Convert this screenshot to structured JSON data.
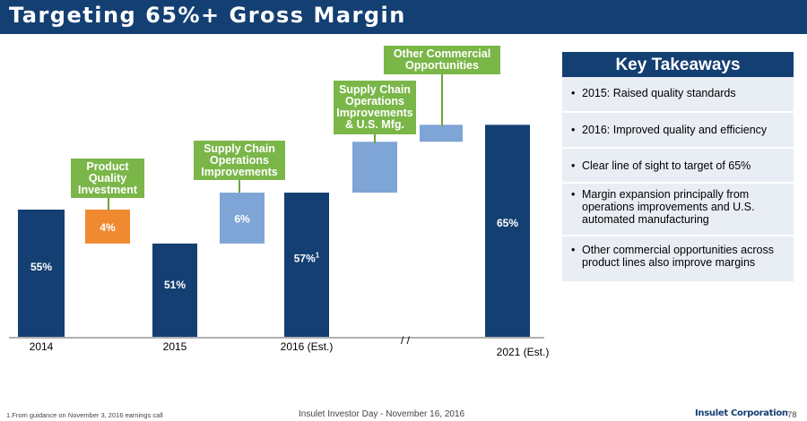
{
  "title": "Targeting 65%+ Gross Margin",
  "chart_data": {
    "type": "bar",
    "subtype": "waterfall",
    "categories": [
      "2014",
      "2015",
      "2016 (Est.)",
      "2021 (Est.)"
    ],
    "bars": [
      {
        "label": "55%",
        "kind": "total",
        "from": 0,
        "to": 55,
        "color": "#143f72"
      },
      {
        "label": "4%",
        "kind": "decrease",
        "from": 51,
        "to": 55,
        "color": "#f08a30",
        "callout": "Product Quality Investment"
      },
      {
        "label": "51%",
        "kind": "total",
        "from": 0,
        "to": 51,
        "category": "2015",
        "color": "#143f72"
      },
      {
        "label": "6%",
        "kind": "increase",
        "from": 51,
        "to": 57,
        "color": "#7fa4d6",
        "callout": "Supply Chain Operations Improvements"
      },
      {
        "label": "57%",
        "label_sup": "1",
        "kind": "total",
        "from": 0,
        "to": 57,
        "category": "2016 (Est.)",
        "color": "#143f72"
      },
      {
        "label": "",
        "kind": "increase",
        "from": 57,
        "to": 63,
        "color": "#7fa4d6",
        "callout": "Supply Chain Operations Improvements & U.S. Mfg."
      },
      {
        "label": "",
        "kind": "increase",
        "from": 63,
        "to": 65,
        "color": "#7fa4d6",
        "callout": "Other Commercial Opportunities"
      },
      {
        "label": "65%",
        "kind": "total",
        "from": 0,
        "to": 65,
        "category": "2021 (Est.)",
        "color": "#143f72"
      }
    ],
    "axis_break": "/ /",
    "ylim": [
      40,
      72
    ]
  },
  "callouts": {
    "product_quality": "Product Quality Investment",
    "supply_chain": "Supply Chain Operations Improvements",
    "supply_chain_mfg": "Supply Chain Operations Improvements & U.S. Mfg.",
    "other_commercial": "Other Commercial Opportunities"
  },
  "key_takeaways": {
    "header": "Key Takeaways",
    "items": [
      "2015: Raised quality standards",
      "2016: Improved quality and efficiency",
      "Clear line of sight to target of 65%",
      "Margin expansion principally from operations improvements and U.S. automated manufacturing",
      "Other commercial opportunities across product lines also improve margins"
    ]
  },
  "footer": {
    "footnote": "1.From guidance on November 3, 2016 earnings call",
    "center": "Insulet Investor Day - November 16, 2016",
    "logo": "Insulet Corporation",
    "page": "78"
  }
}
